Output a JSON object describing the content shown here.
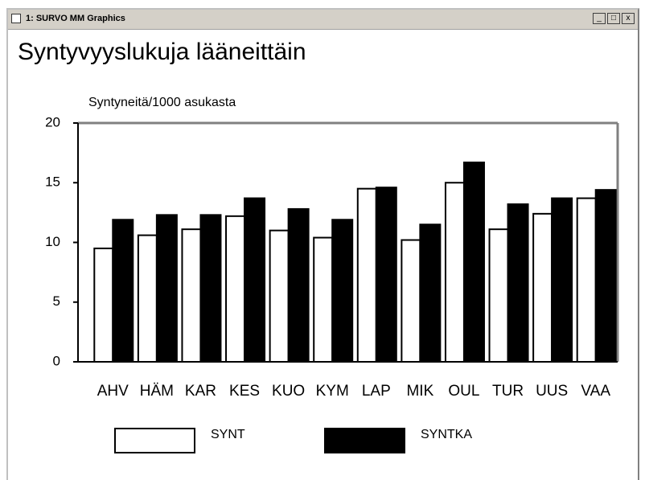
{
  "window": {
    "title": "1: SURVO MM Graphics"
  },
  "chart_data": {
    "type": "bar",
    "title": "Syntyvyyslukuja lääneittäin",
    "y_label": "Syntyneitä/1000 asukasta",
    "categories": [
      "AHV",
      "HÄM",
      "KAR",
      "KES",
      "KUO",
      "KYM",
      "LAP",
      "MIK",
      "OUL",
      "TUR",
      "UUS",
      "VAA"
    ],
    "series": [
      {
        "name": "SYNT",
        "color": "#ffffff",
        "values": [
          9.5,
          10.6,
          11.1,
          12.2,
          11.0,
          10.4,
          14.5,
          10.2,
          15.0,
          11.1,
          12.4,
          13.7
        ]
      },
      {
        "name": "SYNTKA",
        "color": "#000000",
        "values": [
          11.9,
          12.3,
          12.3,
          13.7,
          12.8,
          11.9,
          14.6,
          11.5,
          16.7,
          13.2,
          13.7,
          14.4
        ]
      }
    ],
    "ylim": [
      0,
      20
    ],
    "yticks": [
      0,
      5,
      10,
      15,
      20
    ],
    "grid": false,
    "legend": "bottom"
  }
}
